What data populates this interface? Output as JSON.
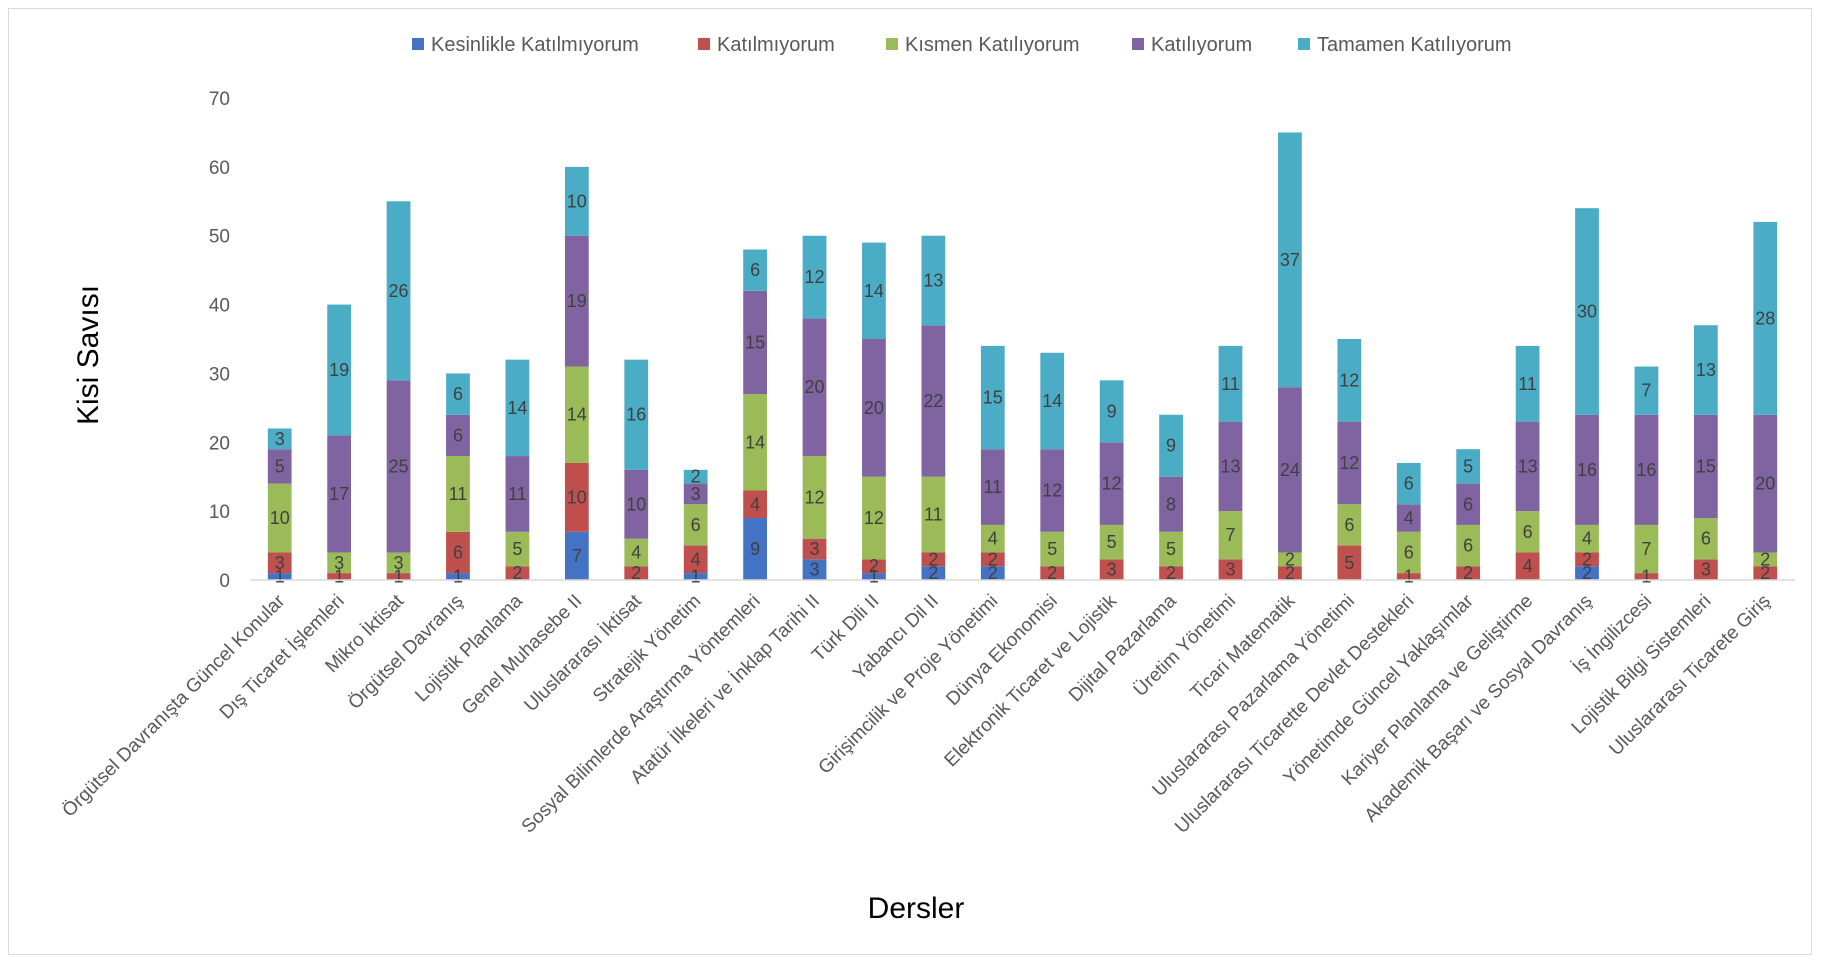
{
  "chart_data": {
    "type": "bar",
    "stacked": true,
    "title": "",
    "xlabel": "Dersler",
    "ylabel": "Kisi Savısı",
    "ylim": [
      0,
      70
    ],
    "yticks": [
      0,
      10,
      20,
      30,
      40,
      50,
      60,
      70
    ],
    "grid": false,
    "legend_position": "top",
    "categories": [
      "Örgütsel Davranışta Güncel Konular",
      "Dış Ticaret İşlemleri",
      "Mikro  İktisat",
      "Örgütsel Davranış",
      "Lojistik Planlama",
      "Genel Muhasebe II",
      "Uluslararası İktisat",
      "Stratejik Yönetim",
      "Sosyal Bilimlerde Araştırma Yöntemleri",
      "Atatür İlkeleri ve İnklap Tarihi II",
      "Türk Dili II",
      "Yabancı Dil II",
      "Girişimcilik ve Proje Yönetimi",
      "Dünya Ekonomisi",
      "Elektronik Ticaret ve Lojistik",
      "Dijital Pazarlama",
      "Üretim Yönetimi",
      "Ticari Matematik",
      "Uluslararası Pazarlama Yönetimi",
      "Uluslararası Ticarette Devlet Destekleri",
      "Yönetimde Güncel Yaklaşımlar",
      "Kariyer Planlama ve Geliştirme",
      "Akademik Başarı ve Sosyal Davranış",
      "İş İngilizcesi",
      "Lojistik Bilgi Sistemleri",
      "Uluslararası Ticarete Giriş"
    ],
    "series": [
      {
        "name": "Kesinlikle Katılmıyorum",
        "color": "#4472c4",
        "values": [
          1,
          0,
          0,
          1,
          0,
          7,
          0,
          1,
          9,
          3,
          1,
          2,
          2,
          0,
          0,
          0,
          0,
          0,
          0,
          0,
          0,
          0,
          2,
          0,
          0,
          0
        ]
      },
      {
        "name": "Katılmıyorum",
        "color": "#c0504d",
        "values": [
          3,
          1,
          1,
          6,
          2,
          10,
          2,
          4,
          4,
          3,
          2,
          2,
          2,
          2,
          3,
          2,
          3,
          2,
          5,
          1,
          2,
          4,
          2,
          1,
          3,
          2
        ]
      },
      {
        "name": "Kısmen Katılıyorum",
        "color": "#9bbb59",
        "values": [
          10,
          3,
          3,
          11,
          5,
          14,
          4,
          6,
          14,
          12,
          12,
          11,
          4,
          5,
          5,
          5,
          7,
          2,
          6,
          6,
          6,
          6,
          4,
          7,
          6,
          2
        ]
      },
      {
        "name": "Katılıyorum",
        "color": "#8064a2",
        "values": [
          5,
          17,
          25,
          6,
          11,
          19,
          10,
          3,
          15,
          20,
          20,
          22,
          11,
          12,
          12,
          8,
          13,
          24,
          12,
          4,
          6,
          13,
          16,
          16,
          15,
          20
        ]
      },
      {
        "name": "Tamamen Katılıyorum",
        "color": "#4bacc6",
        "values": [
          3,
          19,
          26,
          6,
          14,
          10,
          16,
          2,
          6,
          12,
          14,
          13,
          15,
          14,
          9,
          9,
          11,
          37,
          12,
          6,
          5,
          11,
          30,
          7,
          13,
          28
        ]
      }
    ]
  }
}
